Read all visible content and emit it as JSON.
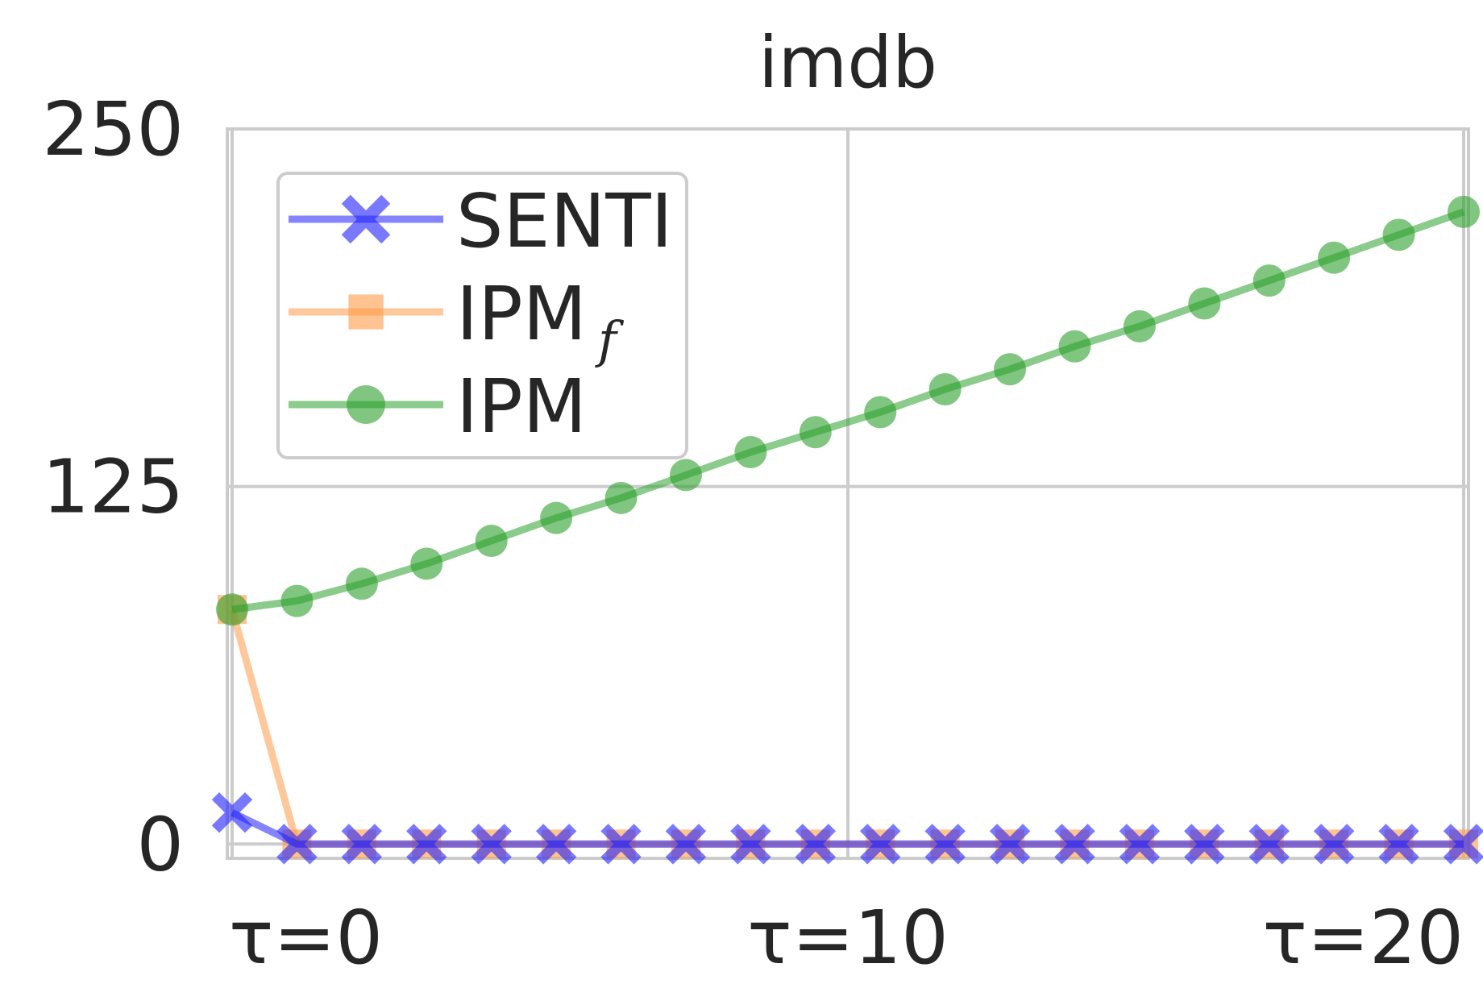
{
  "chart_data": {
    "type": "line",
    "title": "imdb",
    "xlabel": "",
    "ylabel": "",
    "x": [
      0,
      1,
      2,
      3,
      4,
      5,
      6,
      7,
      8,
      9,
      10,
      11,
      12,
      13,
      14,
      15,
      16,
      17,
      18,
      19
    ],
    "xlim": [
      0,
      19
    ],
    "ylim": [
      -5,
      250
    ],
    "xticks": [
      {
        "value": 0,
        "label": "τ=0"
      },
      {
        "value": 9.5,
        "label": "τ=10"
      },
      {
        "value": 19,
        "label": "τ=20"
      }
    ],
    "yticks": [
      {
        "value": 0,
        "label": "0"
      },
      {
        "value": 125,
        "label": "125"
      },
      {
        "value": 250,
        "label": "250"
      }
    ],
    "grid": true,
    "legend_position": "upper-left",
    "series": [
      {
        "name": "SENTI",
        "color": "#1f1fff",
        "marker": "x",
        "values": [
          11,
          0,
          0,
          0,
          0,
          0,
          0,
          0,
          0,
          0,
          0,
          0,
          0,
          0,
          0,
          0,
          0,
          0,
          0,
          0
        ]
      },
      {
        "name": "IPM",
        "name_subscript": "f",
        "color": "#ff9a47",
        "marker": "square",
        "values": [
          82,
          0,
          0,
          0,
          0,
          0,
          0,
          0,
          0,
          0,
          0,
          0,
          0,
          0,
          0,
          0,
          0,
          0,
          0,
          0
        ]
      },
      {
        "name": "IPM",
        "color": "#2ca02c",
        "marker": "circle",
        "values": [
          82,
          85,
          91,
          98,
          106,
          114,
          121,
          129,
          137,
          144,
          151,
          159,
          166,
          174,
          181,
          189,
          197,
          205,
          213,
          221
        ]
      }
    ]
  }
}
